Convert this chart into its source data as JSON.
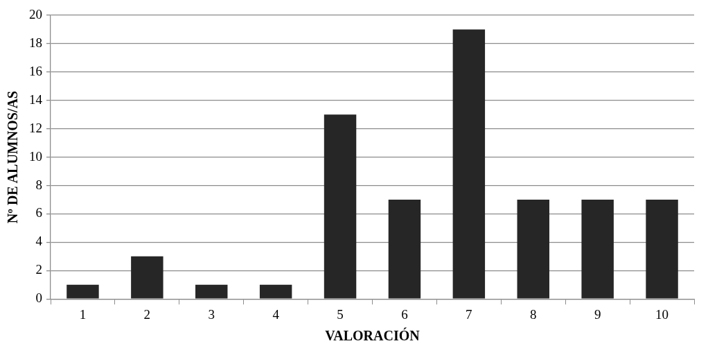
{
  "chart_data": {
    "type": "bar",
    "xlabel": "VALORACIÓN",
    "ylabel": "Nº DE ALUMNOS/AS",
    "categories": [
      "1",
      "2",
      "3",
      "4",
      "5",
      "6",
      "7",
      "8",
      "9",
      "10"
    ],
    "values": [
      1,
      3,
      1,
      1,
      13,
      7,
      19,
      7,
      7,
      7
    ],
    "color": "#262626",
    "ylim": [
      0,
      20
    ],
    "yticks": [
      0,
      2,
      4,
      6,
      8,
      10,
      12,
      14,
      16,
      18,
      20
    ],
    "grid": "y",
    "legend": false
  }
}
